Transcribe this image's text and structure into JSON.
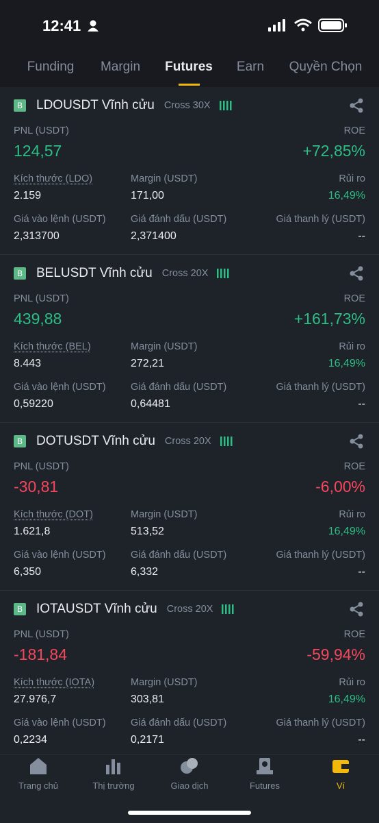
{
  "status_bar": {
    "time": "12:41"
  },
  "tabs": [
    "Funding",
    "Margin",
    "Futures",
    "Earn",
    "Quyền Chọn"
  ],
  "positions": [
    {
      "side": "B",
      "title": "LDOUSDT Vĩnh cửu",
      "leverage": "Cross 30X",
      "pnl_label": "PNL (USDT)",
      "pnl": "124,57",
      "roe_label": "ROE",
      "roe": "+72,85%",
      "size_label": "Kích thước (LDO)",
      "size": "2.159",
      "margin_label": "Margin (USDT)",
      "margin": "171,00",
      "risk_label": "Rủi ro",
      "risk": "16,49%",
      "entry_label": "Giá vào lệnh (USDT)",
      "entry": "2,313700",
      "mark_label": "Giá đánh dấu (USDT)",
      "mark": "2,371400",
      "liq_label": "Giá thanh lý (USDT)",
      "liq": "--"
    },
    {
      "side": "B",
      "title": "BELUSDT Vĩnh cửu",
      "leverage": "Cross 20X",
      "pnl_label": "PNL (USDT)",
      "pnl": "439,88",
      "roe_label": "ROE",
      "roe": "+161,73%",
      "size_label": "Kích thước (BEL)",
      "size": "8.443",
      "margin_label": "Margin (USDT)",
      "margin": "272,21",
      "risk_label": "Rủi ro",
      "risk": "16,49%",
      "entry_label": "Giá vào lệnh (USDT)",
      "entry": "0,59220",
      "mark_label": "Giá đánh dấu (USDT)",
      "mark": "0,64481",
      "liq_label": "Giá thanh lý (USDT)",
      "liq": "--"
    },
    {
      "side": "B",
      "title": "DOTUSDT Vĩnh cửu",
      "leverage": "Cross 20X",
      "pnl_label": "PNL (USDT)",
      "pnl": "-30,81",
      "roe_label": "ROE",
      "roe": "-6,00%",
      "size_label": "Kích thước (DOT)",
      "size": "1.621,8",
      "margin_label": "Margin (USDT)",
      "margin": "513,52",
      "risk_label": "Rủi ro",
      "risk": "16,49%",
      "entry_label": "Giá vào lệnh (USDT)",
      "entry": "6,350",
      "mark_label": "Giá đánh dấu (USDT)",
      "mark": "6,332",
      "liq_label": "Giá thanh lý (USDT)",
      "liq": "--"
    },
    {
      "side": "B",
      "title": "IOTAUSDT Vĩnh cửu",
      "leverage": "Cross 20X",
      "pnl_label": "PNL (USDT)",
      "pnl": "-181,84",
      "roe_label": "ROE",
      "roe": "-59,94%",
      "size_label": "Kích thước (IOTA)",
      "size": "27.976,7",
      "margin_label": "Margin (USDT)",
      "margin": "303,81",
      "risk_label": "Rủi ro",
      "risk": "16,49%",
      "entry_label": "Giá vào lệnh (USDT)",
      "entry": "0,2234",
      "mark_label": "Giá đánh dấu (USDT)",
      "mark": "0,2171",
      "liq_label": "Giá thanh lý (USDT)",
      "liq": "--"
    }
  ],
  "bottom_nav": [
    "Trang chủ",
    "Thị trường",
    "Giao dịch",
    "Futures",
    "Ví"
  ]
}
